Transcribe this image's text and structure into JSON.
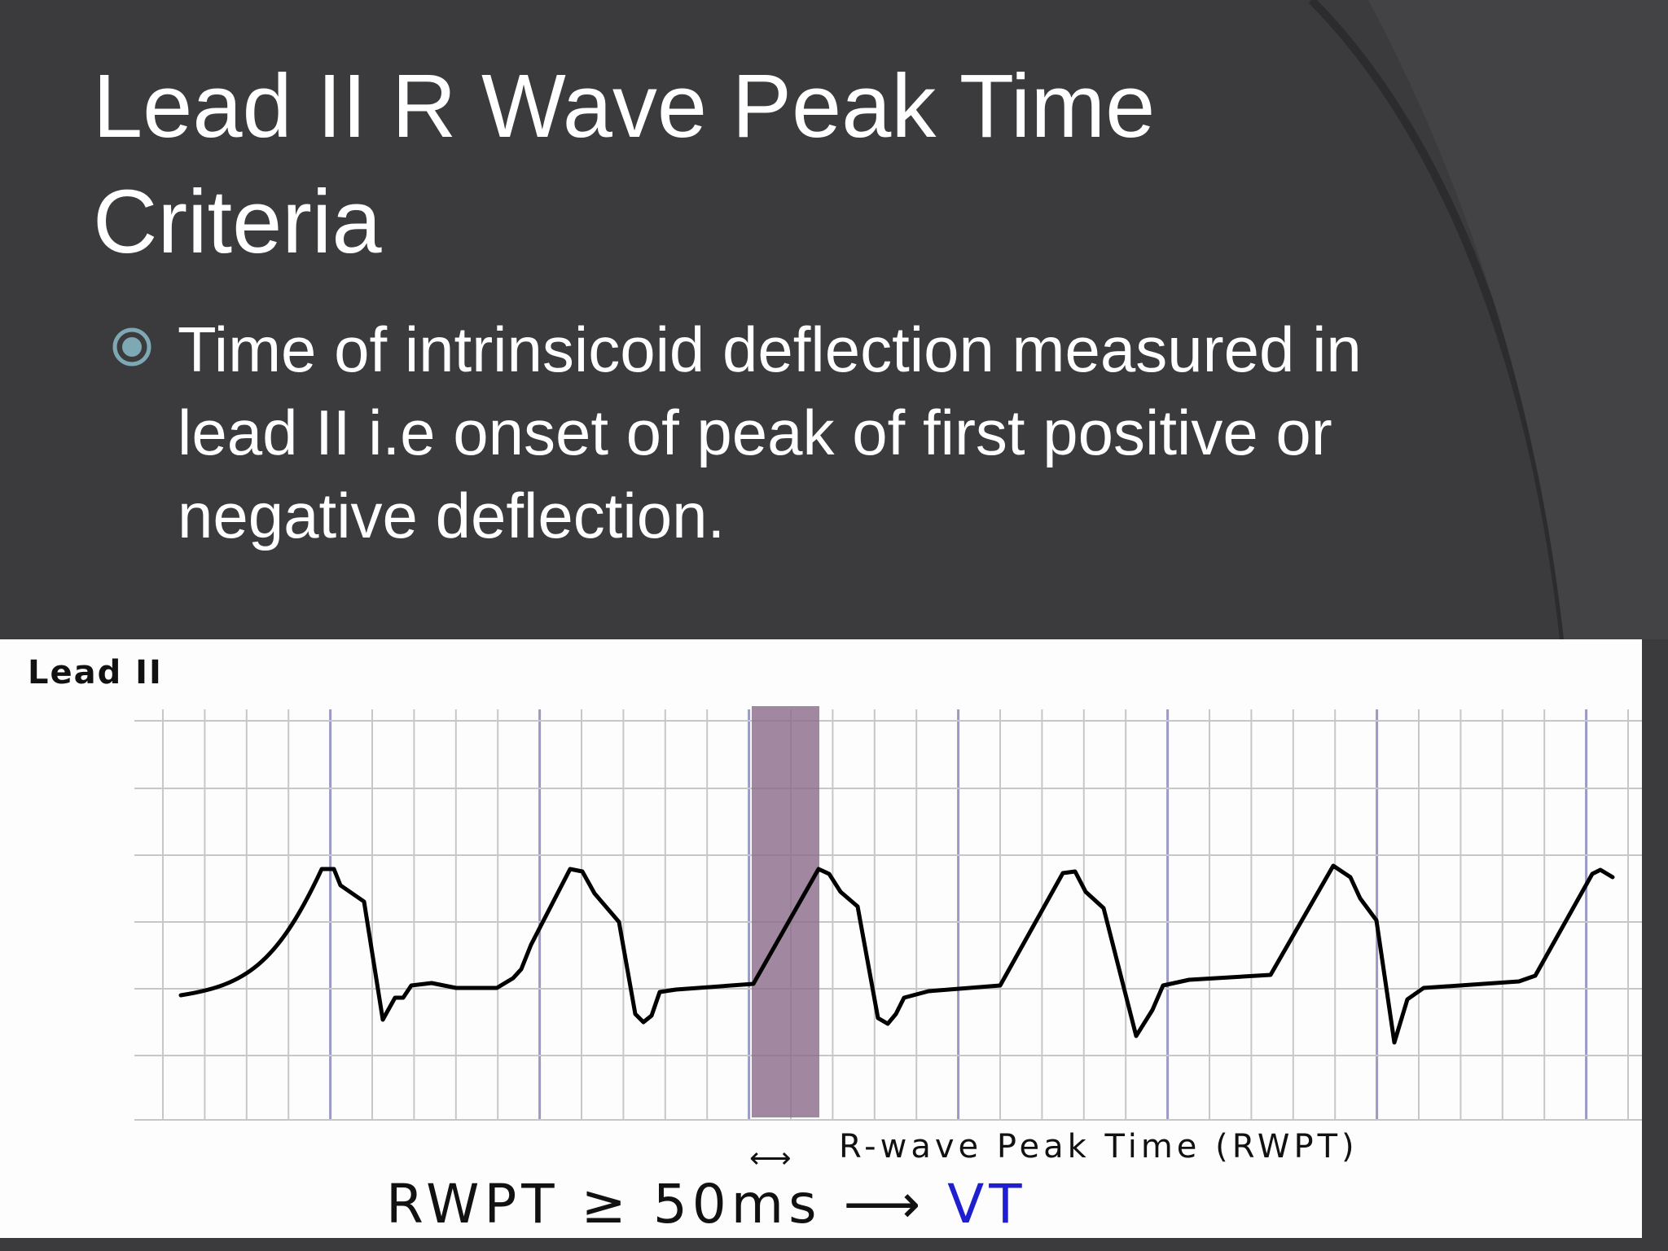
{
  "slide": {
    "title": "Lead II R Wave Peak Time Criteria",
    "bullet": "Time of intrinsicoid deflection measured in lead II i.e onset of peak of first positive or negative deflection."
  },
  "ecg": {
    "lead_label": "Lead II",
    "rwpt_caption": "R-wave Peak Time (RWPT)",
    "arrow_glyph": "⟷",
    "formula_lhs": "RWPT ≥ 50ms",
    "formula_arrow": "⟶",
    "formula_result": "VT"
  },
  "colors": {
    "background": "#3b3b3d",
    "panel": "#fdfdfd",
    "highlight_band": "#8e6d8c",
    "formula_result": "#1f1fd0",
    "bullet_icon": "#7ea8b4"
  }
}
